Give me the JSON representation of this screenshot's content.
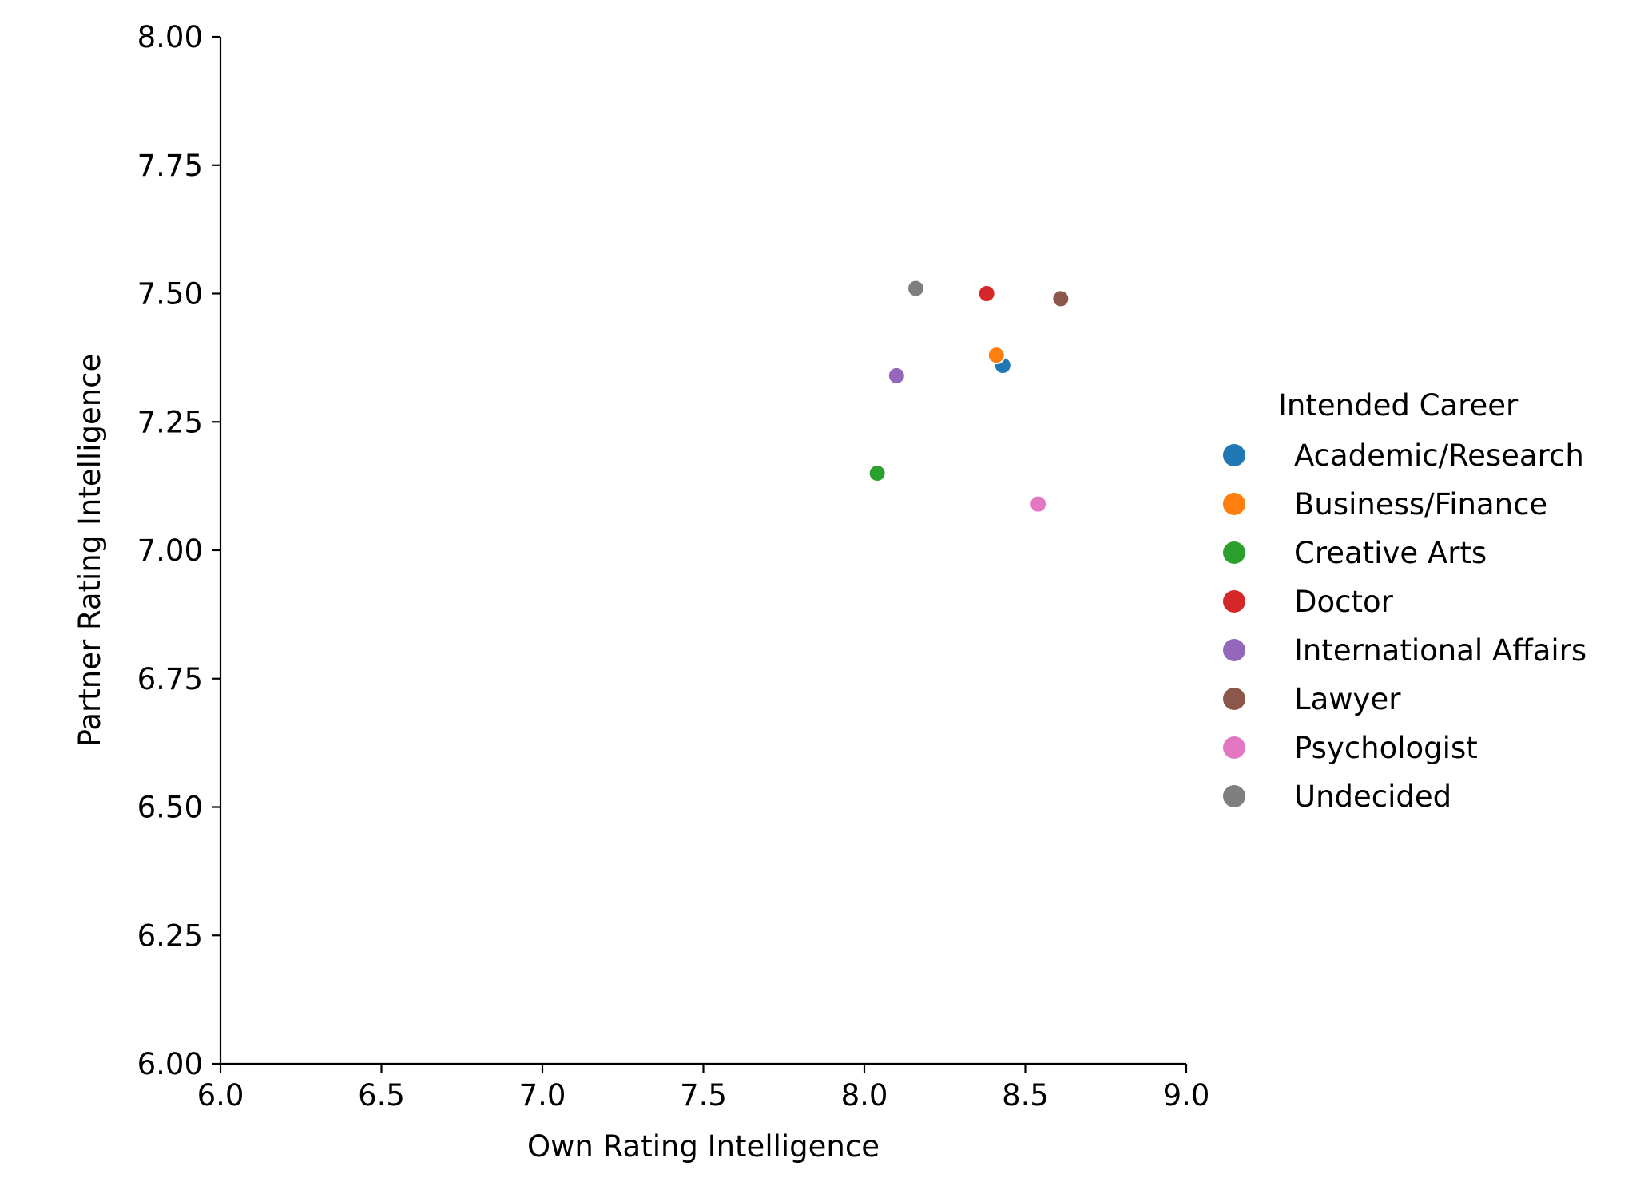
{
  "chart_data": {
    "type": "scatter",
    "title": "",
    "xlabel": "Own Rating Intelligence",
    "ylabel": "Partner Rating Intelligence",
    "xlim": [
      6.0,
      9.0
    ],
    "ylim": [
      6.0,
      8.0
    ],
    "xticks": [
      "6.0",
      "6.5",
      "7.0",
      "7.5",
      "8.0",
      "8.5",
      "9.0"
    ],
    "yticks": [
      "6.00",
      "6.25",
      "6.50",
      "6.75",
      "7.00",
      "7.25",
      "7.50",
      "7.75",
      "8.00"
    ],
    "grid": false,
    "legend": {
      "title": "Intended Career",
      "placement": "right"
    },
    "series": [
      {
        "name": "Academic/Research",
        "color": "#1f77b4",
        "x": [
          8.43
        ],
        "y": [
          7.36
        ]
      },
      {
        "name": "Business/Finance",
        "color": "#ff7f0e",
        "x": [
          8.41
        ],
        "y": [
          7.38
        ]
      },
      {
        "name": "Creative Arts",
        "color": "#2ca02c",
        "x": [
          8.04
        ],
        "y": [
          7.15
        ]
      },
      {
        "name": "Doctor",
        "color": "#d62728",
        "x": [
          8.38
        ],
        "y": [
          7.5
        ]
      },
      {
        "name": "International Affairs",
        "color": "#9467bd",
        "x": [
          8.1
        ],
        "y": [
          7.34
        ]
      },
      {
        "name": "Lawyer",
        "color": "#8c564b",
        "x": [
          8.61
        ],
        "y": [
          7.49
        ]
      },
      {
        "name": "Psychologist",
        "color": "#e377c2",
        "x": [
          8.54
        ],
        "y": [
          7.09
        ]
      },
      {
        "name": "Undecided",
        "color": "#7f7f7f",
        "x": [
          8.16
        ],
        "y": [
          7.51
        ]
      }
    ]
  }
}
